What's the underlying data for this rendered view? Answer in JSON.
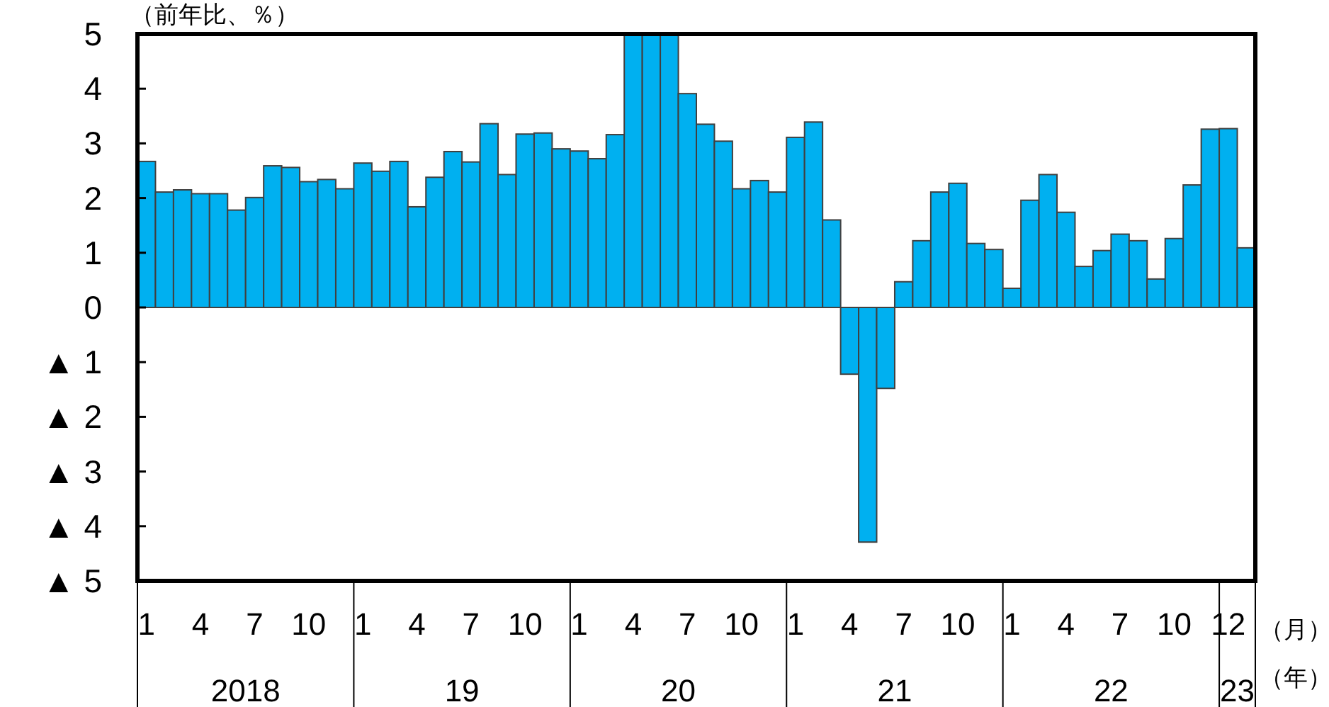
{
  "chart_data": {
    "type": "bar",
    "ylabel": "（前年比、％）",
    "categories": [
      "1",
      null,
      null,
      "4",
      null,
      null,
      "7",
      null,
      null,
      "10",
      null,
      null,
      "1",
      null,
      null,
      "4",
      null,
      null,
      "7",
      null,
      null,
      "10",
      null,
      null,
      "1",
      null,
      null,
      "4",
      null,
      null,
      "7",
      null,
      null,
      "10",
      null,
      null,
      "1",
      null,
      null,
      "4",
      null,
      null,
      "7",
      null,
      null,
      "10",
      null,
      null,
      "1",
      null,
      null,
      "4",
      null,
      null,
      "7",
      null,
      null,
      "10",
      null,
      null,
      "12",
      null
    ],
    "values": [
      2.67,
      2.11,
      2.15,
      2.08,
      2.08,
      1.78,
      2.01,
      2.59,
      2.56,
      2.3,
      2.34,
      2.17,
      2.64,
      2.49,
      2.67,
      1.84,
      2.38,
      2.85,
      2.66,
      3.36,
      2.43,
      3.17,
      3.19,
      2.9,
      2.86,
      2.72,
      3.16,
      5,
      5,
      5,
      3.91,
      3.35,
      3.04,
      2.17,
      2.32,
      2.11,
      3.11,
      3.39,
      1.6,
      -1.22,
      -4.29,
      -1.48,
      0.47,
      1.22,
      2.11,
      2.27,
      1.17,
      1.06,
      0.35,
      1.96,
      2.43,
      1.74,
      0.75,
      1.04,
      1.34,
      1.22,
      0.52,
      1.26,
      2.24,
      3.26,
      3.27,
      1.09
    ],
    "color": "#00b0f0",
    "ylim": [
      -5,
      5
    ],
    "yticks": [
      {
        "value": -5,
        "label": "▲ 5"
      },
      {
        "value": -4,
        "label": "▲ 4"
      },
      {
        "value": -3,
        "label": "▲ 3"
      },
      {
        "value": -2,
        "label": "▲ 2"
      },
      {
        "value": -1,
        "label": "▲ 1"
      },
      0,
      1,
      2,
      3,
      4,
      5
    ],
    "annotations": [
      "2018",
      "19",
      "20",
      "21",
      "22",
      "23",
      "（月）",
      "（年）"
    ]
  }
}
